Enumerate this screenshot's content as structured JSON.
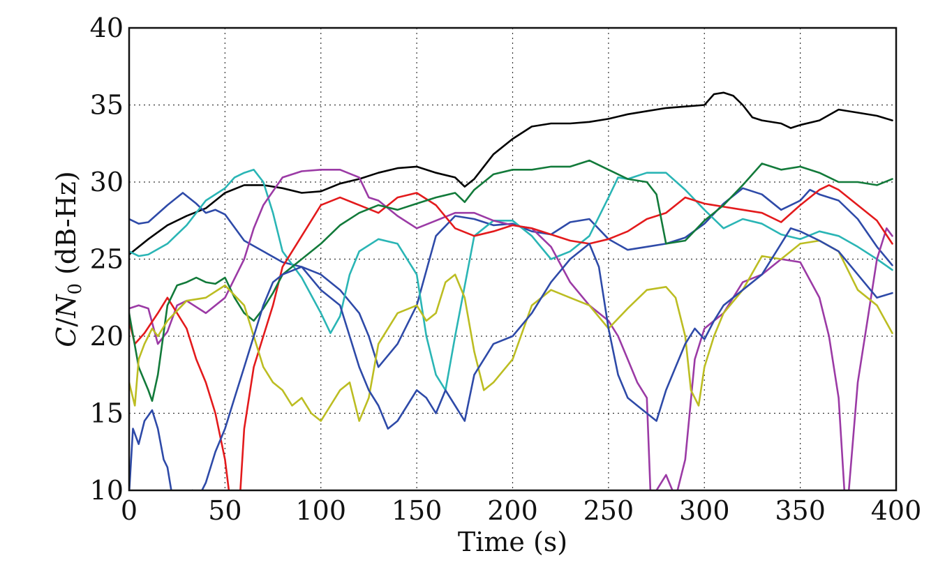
{
  "chart_data": {
    "type": "line",
    "xlabel": "Time (s)",
    "ylabel_parts": [
      "C",
      "/",
      "N",
      "0",
      " (dB-Hz)"
    ],
    "xlim": [
      0,
      400
    ],
    "ylim": [
      10,
      40
    ],
    "xticks": [
      0,
      50,
      100,
      150,
      200,
      250,
      300,
      350,
      400
    ],
    "yticks": [
      10,
      15,
      20,
      25,
      30,
      35,
      40
    ],
    "xtick_labels": [
      "0",
      "50",
      "100",
      "150",
      "200",
      "250",
      "300",
      "350",
      "400"
    ],
    "ytick_labels": [
      "10",
      "15",
      "20",
      "25",
      "30",
      "35",
      "40"
    ],
    "grid": true,
    "series": [
      {
        "color": "#000000",
        "x": [
          0,
          10,
          20,
          30,
          40,
          50,
          60,
          70,
          80,
          90,
          100,
          110,
          120,
          130,
          140,
          150,
          160,
          170,
          175,
          180,
          190,
          200,
          210,
          220,
          230,
          240,
          250,
          260,
          270,
          280,
          290,
          300,
          305,
          310,
          315,
          320,
          325,
          330,
          340,
          345,
          350,
          360,
          370,
          380,
          390,
          398
        ],
        "y": [
          25.3,
          26.3,
          27.2,
          27.8,
          28.3,
          29.3,
          29.8,
          29.8,
          29.6,
          29.3,
          29.4,
          29.9,
          30.2,
          30.6,
          30.9,
          31.0,
          30.6,
          30.3,
          29.7,
          30.2,
          31.8,
          32.8,
          33.6,
          33.8,
          33.8,
          33.9,
          34.1,
          34.4,
          34.6,
          34.8,
          34.9,
          35.0,
          35.7,
          35.8,
          35.6,
          35.0,
          34.2,
          34.0,
          33.8,
          33.5,
          33.7,
          34.0,
          34.7,
          34.5,
          34.3,
          34.0
        ]
      },
      {
        "color": "#2e4aa8",
        "x": [
          0,
          5,
          10,
          20,
          28,
          35,
          40,
          45,
          50,
          60,
          70,
          80,
          90,
          100,
          110,
          120,
          125,
          130,
          140,
          150,
          160,
          170,
          180,
          190,
          200,
          210,
          220,
          230,
          240,
          250,
          260,
          270,
          280,
          290,
          300,
          310,
          320,
          330,
          340,
          350,
          355,
          360,
          370,
          380,
          390,
          398
        ],
        "y": [
          27.6,
          27.3,
          27.4,
          28.5,
          29.3,
          28.6,
          28.0,
          28.2,
          27.9,
          26.2,
          25.5,
          24.8,
          24.5,
          24.0,
          23.0,
          21.5,
          20.0,
          18.0,
          19.5,
          22.0,
          26.5,
          27.8,
          27.6,
          27.2,
          27.3,
          26.8,
          26.6,
          27.4,
          27.6,
          26.3,
          25.6,
          25.8,
          26.0,
          26.4,
          27.3,
          28.6,
          29.6,
          29.2,
          28.2,
          28.8,
          29.5,
          29.2,
          28.8,
          27.6,
          25.8,
          24.6
        ]
      },
      {
        "color": "#2ab5b5",
        "x": [
          0,
          5,
          10,
          20,
          30,
          40,
          50,
          55,
          60,
          65,
          70,
          75,
          80,
          90,
          100,
          105,
          110,
          115,
          120,
          130,
          140,
          150,
          155,
          160,
          165,
          170,
          180,
          190,
          200,
          210,
          220,
          230,
          240,
          250,
          255,
          260,
          270,
          280,
          290,
          300,
          310,
          320,
          330,
          340,
          350,
          360,
          370,
          380,
          390,
          398
        ],
        "y": [
          25.5,
          25.2,
          25.3,
          26.0,
          27.2,
          28.8,
          29.6,
          30.3,
          30.6,
          30.8,
          30.0,
          28.0,
          25.5,
          23.8,
          21.5,
          20.2,
          21.3,
          24.0,
          25.5,
          26.3,
          26.0,
          24.0,
          20.0,
          17.5,
          16.5,
          20.0,
          26.5,
          27.5,
          27.5,
          26.5,
          25.0,
          25.5,
          26.5,
          29.0,
          30.3,
          30.2,
          30.6,
          30.6,
          29.5,
          28.2,
          27.0,
          27.6,
          27.3,
          26.6,
          26.3,
          26.8,
          26.5,
          25.8,
          25.0,
          24.3
        ]
      },
      {
        "color": "#9b3aa5",
        "x": [
          0,
          5,
          10,
          15,
          20,
          25,
          30,
          40,
          50,
          60,
          65,
          70,
          80,
          90,
          100,
          110,
          120,
          125,
          130,
          140,
          150,
          160,
          170,
          180,
          190,
          200,
          210,
          220,
          230,
          240,
          250,
          255,
          260,
          265,
          270,
          272,
          275,
          280,
          285,
          290,
          295,
          300,
          310,
          320,
          330,
          340,
          350,
          360,
          365,
          370,
          373,
          375,
          380,
          385,
          390,
          395,
          398
        ],
        "y": [
          21.8,
          22.0,
          21.8,
          19.5,
          20.3,
          22.0,
          22.3,
          21.5,
          22.5,
          25.0,
          27.0,
          28.5,
          30.3,
          30.7,
          30.8,
          30.8,
          30.3,
          29.0,
          28.8,
          27.8,
          27.0,
          27.5,
          28.0,
          28.0,
          27.5,
          27.2,
          27.0,
          25.8,
          23.5,
          22.0,
          21.0,
          20.0,
          18.5,
          17.0,
          16.0,
          9.5,
          10.0,
          11.0,
          9.5,
          12.0,
          18.5,
          20.5,
          21.5,
          23.5,
          24.0,
          25.0,
          24.8,
          22.5,
          20.0,
          16.0,
          10.0,
          9.5,
          17.0,
          21.0,
          25.0,
          27.0,
          26.5
        ]
      },
      {
        "color": "#e31a1c",
        "x": [
          0,
          3,
          8,
          15,
          20,
          25,
          30,
          35,
          40,
          45,
          50,
          52,
          55,
          58,
          60,
          65,
          70,
          75,
          80,
          90,
          100,
          110,
          120,
          130,
          140,
          150,
          160,
          170,
          180,
          190,
          200,
          210,
          220,
          230,
          240,
          250,
          260,
          270,
          280,
          290,
          300,
          310,
          320,
          330,
          340,
          350,
          360,
          365,
          370,
          380,
          390,
          398
        ],
        "y": [
          21.0,
          19.5,
          20.2,
          21.5,
          22.5,
          21.5,
          20.5,
          18.5,
          17.0,
          15.0,
          12.0,
          10.0,
          9.5,
          10.0,
          14.0,
          18.0,
          20.0,
          22.0,
          24.5,
          26.5,
          28.5,
          29.0,
          28.5,
          28.0,
          29.0,
          29.3,
          28.5,
          27.0,
          26.5,
          26.8,
          27.2,
          27.0,
          26.6,
          26.2,
          26.0,
          26.3,
          26.8,
          27.6,
          28.0,
          29.0,
          28.6,
          28.4,
          28.2,
          28.0,
          27.4,
          28.5,
          29.5,
          29.8,
          29.5,
          28.5,
          27.5,
          26.0
        ]
      },
      {
        "color": "#127a3a",
        "x": [
          0,
          5,
          10,
          12,
          15,
          20,
          25,
          30,
          35,
          40,
          45,
          50,
          55,
          60,
          65,
          70,
          75,
          80,
          90,
          100,
          110,
          120,
          130,
          140,
          150,
          160,
          170,
          175,
          180,
          190,
          200,
          210,
          220,
          230,
          240,
          250,
          260,
          270,
          275,
          280,
          290,
          300,
          310,
          320,
          330,
          340,
          350,
          360,
          370,
          380,
          390,
          398
        ],
        "y": [
          21.5,
          18.0,
          16.5,
          15.8,
          17.5,
          22.0,
          23.3,
          23.5,
          23.8,
          23.5,
          23.4,
          23.8,
          22.5,
          21.5,
          21.0,
          21.8,
          22.8,
          24.0,
          25.0,
          26.0,
          27.2,
          28.0,
          28.5,
          28.2,
          28.6,
          29.0,
          29.3,
          28.7,
          29.5,
          30.5,
          30.8,
          30.8,
          31.0,
          31.0,
          31.4,
          30.8,
          30.2,
          30.0,
          29.2,
          26.0,
          26.2,
          27.5,
          28.5,
          29.8,
          31.2,
          30.8,
          31.0,
          30.6,
          30.0,
          30.0,
          29.8,
          30.2
        ]
      },
      {
        "color": "#bcbd22",
        "x": [
          0,
          3,
          5,
          8,
          12,
          15,
          20,
          30,
          40,
          50,
          60,
          65,
          70,
          75,
          80,
          85,
          90,
          95,
          100,
          105,
          110,
          115,
          120,
          125,
          130,
          140,
          150,
          155,
          160,
          165,
          170,
          175,
          180,
          185,
          190,
          200,
          210,
          220,
          230,
          240,
          250,
          260,
          270,
          280,
          285,
          290,
          293,
          297,
          300,
          305,
          310,
          320,
          330,
          340,
          350,
          360,
          370,
          380,
          390,
          398
        ],
        "y": [
          17.0,
          15.5,
          18.5,
          19.5,
          20.5,
          20.0,
          21.0,
          22.3,
          22.5,
          23.3,
          22.0,
          20.0,
          18.0,
          17.0,
          16.5,
          15.5,
          16.0,
          15.0,
          14.5,
          15.5,
          16.5,
          17.0,
          14.5,
          16.0,
          19.5,
          21.5,
          22.0,
          21.0,
          21.5,
          23.5,
          24.0,
          22.5,
          19.0,
          16.5,
          17.0,
          18.5,
          22.0,
          23.0,
          22.5,
          22.0,
          20.5,
          21.8,
          23.0,
          23.2,
          22.5,
          20.0,
          16.5,
          15.5,
          18.0,
          20.0,
          21.5,
          23.0,
          25.2,
          25.0,
          26.0,
          26.2,
          25.5,
          23.0,
          22.0,
          20.2
        ]
      },
      {
        "color": "#2e4aa8",
        "x": [
          0,
          2,
          5,
          8,
          12,
          15,
          18,
          20,
          22,
          25,
          28,
          30,
          33,
          36,
          40,
          45,
          50,
          55,
          60,
          65,
          70,
          75,
          80,
          90,
          100,
          110,
          115,
          120,
          125,
          130,
          135,
          140,
          145,
          150,
          155,
          160,
          165,
          170,
          175,
          180,
          190,
          200,
          210,
          220,
          230,
          240,
          245,
          250,
          255,
          260,
          265,
          270,
          275,
          280,
          285,
          290,
          295,
          300,
          305,
          310,
          320,
          330,
          340,
          345,
          350,
          360,
          370,
          380,
          390,
          398
        ],
        "y": [
          9.8,
          14.0,
          13.0,
          14.5,
          15.2,
          14.0,
          12.0,
          11.5,
          10.0,
          9.5,
          9.5,
          9.5,
          10.0,
          9.5,
          10.5,
          12.5,
          14.0,
          16.0,
          18.0,
          20.0,
          22.0,
          23.5,
          24.0,
          24.5,
          23.0,
          22.0,
          20.0,
          18.0,
          16.5,
          15.5,
          14.0,
          14.5,
          15.5,
          16.5,
          16.0,
          15.0,
          16.5,
          15.5,
          14.5,
          17.5,
          19.5,
          20.0,
          21.5,
          23.5,
          25.0,
          26.0,
          24.5,
          20.5,
          17.5,
          16.0,
          15.5,
          15.0,
          14.5,
          16.5,
          18.0,
          19.5,
          20.5,
          19.8,
          21.0,
          22.0,
          23.0,
          24.0,
          26.0,
          27.0,
          26.8,
          26.2,
          25.5,
          24.0,
          22.5,
          22.8
        ]
      }
    ]
  }
}
